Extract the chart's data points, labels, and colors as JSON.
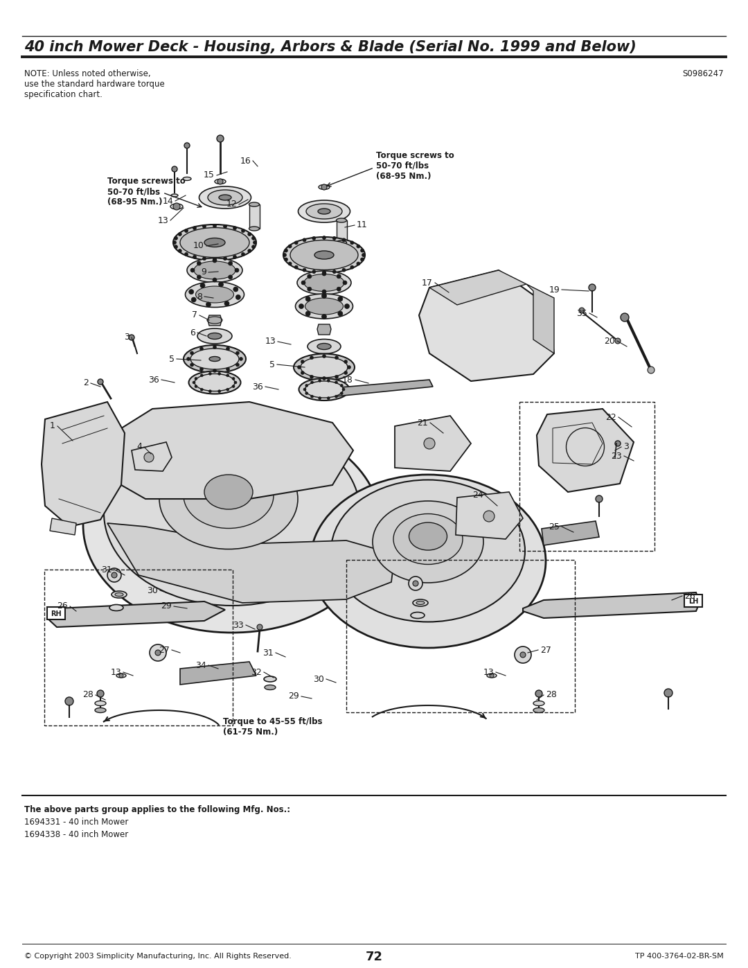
{
  "title": "40 inch Mower Deck - Housing, Arbors & Blade (Serial No. 1999 and Below)",
  "serial_no": "S0986247",
  "note_line1": "NOTE: Unless noted otherwise,",
  "note_line2": "use the standard hardware torque",
  "note_line3": "specification chart.",
  "footer_copyright": "© Copyright 2003 Simplicity Manufacturing, Inc. All Rights Reserved.",
  "footer_page": "72",
  "footer_part_no": "TP 400-3764-02-BR-SM",
  "parts_group_label": "The above parts group applies to the following Mfg. Nos.:",
  "mfg_nos": [
    "1694331 - 40 inch Mower",
    "1694338 - 40 inch Mower"
  ],
  "torque_note_left": "Torque screws to\n50-70 ft/lbs\n(68-95 Nm.)",
  "torque_note_right": "Torque screws to\n50-70 ft/lbs\n(68-95 Nm.)",
  "torque_note_bottom": "Torque to 45-55 ft/lbs\n(61-75 Nm.)",
  "bg_color": "#ffffff",
  "line_color": "#1a1a1a",
  "gray_light": "#d8d8d8",
  "gray_mid": "#b0b0b0",
  "gray_dark": "#888888",
  "title_font_size": 15,
  "body_font_size": 8.5,
  "footer_font_size": 8,
  "label_font_size": 9
}
